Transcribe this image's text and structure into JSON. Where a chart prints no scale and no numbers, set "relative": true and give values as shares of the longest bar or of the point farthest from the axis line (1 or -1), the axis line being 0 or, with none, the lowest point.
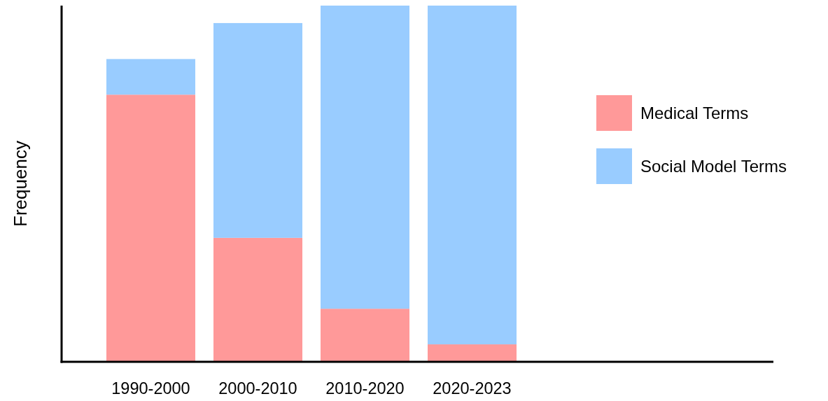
{
  "chart_data": {
    "type": "bar",
    "stacked": true,
    "relative": true,
    "ylabel": "Frequency",
    "categories": [
      "1990-2000",
      "2000-2010",
      "2010-2020",
      "2020-2023"
    ],
    "series": [
      {
        "name": "Medical Terms",
        "color": "#ff9999",
        "values": [
          0.75,
          0.348,
          0.149,
          0.049
        ]
      },
      {
        "name": "Social Model Terms",
        "color": "#99ccff",
        "values": [
          0.1,
          0.603,
          0.851,
          0.951
        ]
      }
    ],
    "legend": "right"
  }
}
